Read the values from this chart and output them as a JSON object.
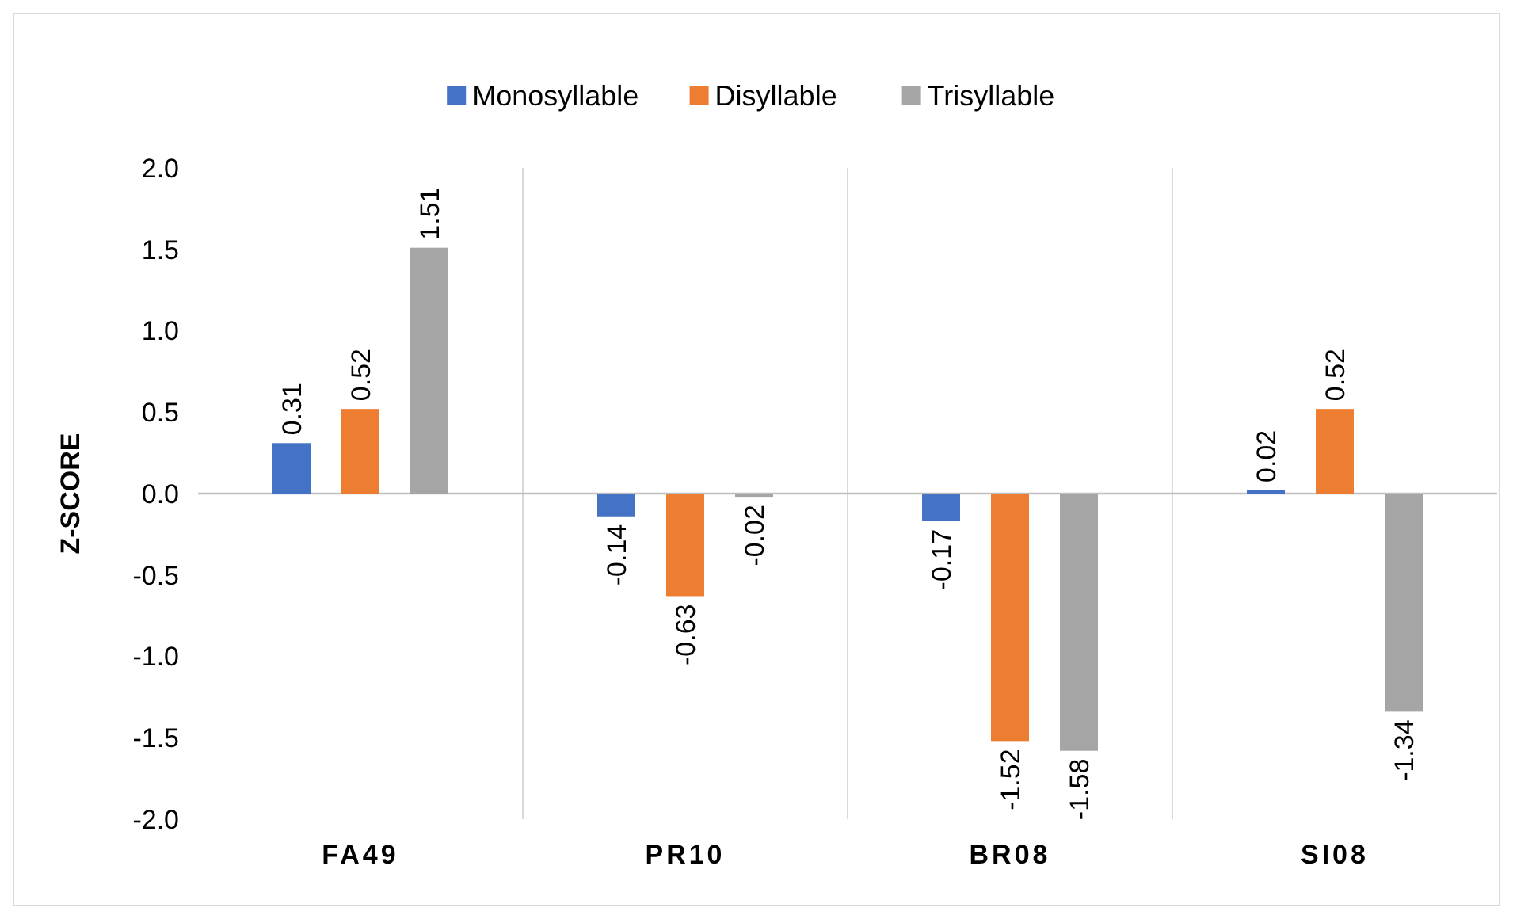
{
  "chart_data": {
    "type": "bar",
    "ylabel": "Z-SCORE",
    "categories": [
      "FA49",
      "PR10",
      "BR08",
      "SI08"
    ],
    "series": [
      {
        "name": "Monosyllable",
        "color": "#4472c4",
        "values": [
          0.31,
          -0.14,
          -0.17,
          0.02
        ]
      },
      {
        "name": "Disyllable",
        "color": "#ed7d31",
        "values": [
          0.52,
          -0.63,
          -1.52,
          0.52
        ]
      },
      {
        "name": "Trisyllable",
        "color": "#a5a5a5",
        "values": [
          1.51,
          -0.02,
          -1.58,
          -1.34
        ]
      }
    ],
    "ylim": [
      -2,
      2
    ],
    "yticks": [
      {
        "value": -2,
        "label": "-2.0"
      },
      {
        "value": -1.5,
        "label": "-1.5"
      },
      {
        "value": -1,
        "label": "-1.0"
      },
      {
        "value": -0.5,
        "label": "-0.5"
      },
      {
        "value": 0,
        "label": "0.0"
      },
      {
        "value": 0.5,
        "label": "0.5"
      },
      {
        "value": 1,
        "label": "1.0"
      },
      {
        "value": 1.5,
        "label": "1.5"
      },
      {
        "value": 2,
        "label": "2.0"
      }
    ],
    "grid": "x",
    "legend": "top",
    "data_labels": true
  }
}
